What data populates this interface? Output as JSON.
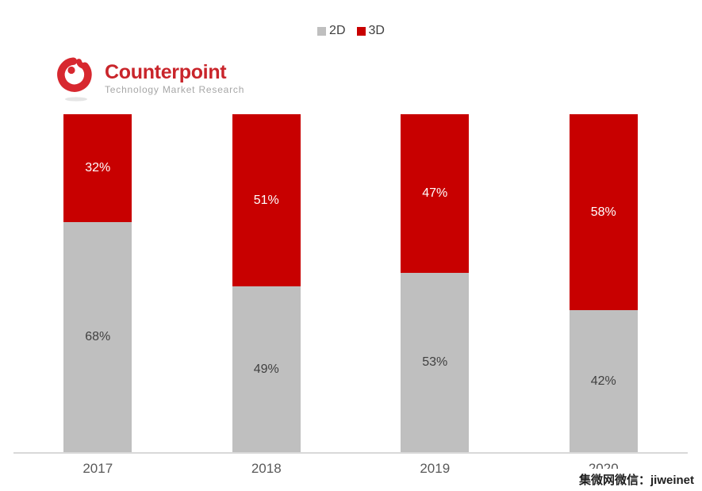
{
  "brand": {
    "name": "Counterpoint",
    "tagline": "Technology Market Research",
    "logo_red": "#D7282F"
  },
  "watermark": {
    "text": "集微网微信：jiweinet"
  },
  "chart_data": {
    "type": "bar",
    "stacked": true,
    "percent_stacked": true,
    "title": "",
    "categories": [
      "2017",
      "2018",
      "2019",
      "2020"
    ],
    "series": [
      {
        "name": "2D",
        "color": "#BFBFBF",
        "label_color": "#404040",
        "values": [
          68,
          49,
          53,
          42
        ],
        "labels": [
          "68%",
          "49%",
          "53%",
          "42%"
        ]
      },
      {
        "name": "3D",
        "color": "#C80000",
        "label_color": "#FFFFFF",
        "values": [
          32,
          51,
          47,
          58
        ],
        "labels": [
          "32%",
          "51%",
          "47%",
          "58%"
        ]
      }
    ],
    "ylim": [
      0,
      100
    ],
    "grid": false,
    "legend_position": "top-center",
    "axis_line_color": "#D9D9D9"
  }
}
